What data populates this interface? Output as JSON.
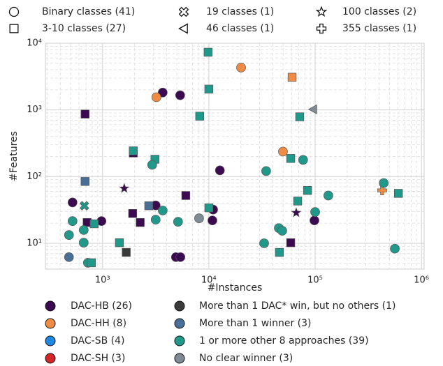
{
  "chart_data": {
    "type": "scatter",
    "xlabel": "#Instances",
    "ylabel": "#Features",
    "xscale": "log",
    "yscale": "log",
    "grid": true,
    "xlim": [
      290,
      1060000
    ],
    "ylim": [
      4.1,
      10000
    ],
    "xticks": [
      {
        "value": 1000,
        "label": "10³"
      },
      {
        "value": 10000,
        "label": "10⁴"
      },
      {
        "value": 100000,
        "label": "10⁵"
      },
      {
        "value": 1000000,
        "label": "10⁶"
      }
    ],
    "yticks": [
      {
        "value": 10,
        "label": "10¹"
      },
      {
        "value": 100,
        "label": "10²"
      },
      {
        "value": 1000,
        "label": "10³"
      },
      {
        "value": 10000,
        "label": "10⁴"
      }
    ],
    "marker_legend": [
      {
        "name": "Binary classes (41)",
        "marker": "circle"
      },
      {
        "name": "19 classes (1)",
        "marker": "cross"
      },
      {
        "name": "100 classes (2)",
        "marker": "star"
      },
      {
        "name": "3-10 classes (27)",
        "marker": "square"
      },
      {
        "name": "46 classes (1)",
        "marker": "triangle"
      },
      {
        "name": "355 classes (1)",
        "marker": "plus"
      }
    ],
    "series": [
      {
        "name": "DAC-HB (26)",
        "color": "#3b0a50",
        "x": [
          522,
          3680,
          5370,
          685,
          1945,
          12700,
          3160,
          6070,
          1920,
          2260,
          716,
          977,
          10970,
          10800,
          4900,
          5400,
          1600,
          66400,
          58900,
          98400
        ],
        "values": [
          41,
          1820,
          1660,
          866,
          226,
          124,
          37,
          52,
          28,
          20.5,
          20.5,
          21.5,
          32,
          22,
          6.2,
          6.2,
          66.5,
          28.7,
          10.2,
          22
        ],
        "markers": [
          "circle",
          "circle",
          "circle",
          "square",
          "square",
          "circle",
          "circle",
          "square",
          "square",
          "square",
          "square",
          "circle",
          "circle",
          "circle",
          "circle",
          "circle",
          "star",
          "star",
          "square",
          "circle"
        ]
      },
      {
        "name": "DAC-HH (8)",
        "color": "#f08b45",
        "x": [
          20100,
          60700,
          3210,
          49800,
          427000
        ],
        "values": [
          4310,
          3090,
          1550,
          237,
          62
        ],
        "markers": [
          "circle",
          "square",
          "circle",
          "circle",
          "plus"
        ]
      },
      {
        "name": "DAC-SB (4)",
        "color": "#1e88e5",
        "x": [],
        "values": [],
        "markers": []
      },
      {
        "name": "DAC-SH (3)",
        "color": "#d62728",
        "x": [],
        "values": [],
        "markers": []
      },
      {
        "name": "More than 1 DAC* win, but no others (1)",
        "color": "#3a3a3a",
        "x": [
          1670
        ],
        "values": [
          7.3
        ],
        "markers": [
          "square"
        ]
      },
      {
        "name": "More than 1 winner (3)",
        "color": "#4a6f97",
        "x": [
          685,
          2720,
          483
        ],
        "values": [
          84.5,
          36.5,
          6.2
        ],
        "markers": [
          "square",
          "square",
          "circle"
        ]
      },
      {
        "name": "1 or more other 8 approaches (39)",
        "color": "#21998a",
        "x": [
          9840,
          10000,
          8200,
          71600,
          1945,
          3110,
          2930,
          58900,
          77000,
          34600,
          442000,
          607000,
          84800,
          133000,
          68500,
          100000,
          10000,
          3680,
          522,
          674,
          665,
          834,
          483,
          665,
          728,
          785,
          1440,
          3160,
          5130,
          33100,
          45500,
          49000,
          46100,
          562000
        ],
        "values": [
          7330,
          2050,
          805,
          787,
          243,
          182,
          150,
          187,
          178,
          121,
          80,
          56,
          62,
          52,
          43,
          29.4,
          34,
          31,
          21.5,
          36.5,
          15.8,
          19.6,
          13.3,
          10.2,
          5.1,
          5.1,
          10.2,
          22.6,
          21,
          10,
          16.9,
          15.4,
          7.3,
          8.3
        ],
        "markers": [
          "square",
          "square",
          "square",
          "square",
          "square",
          "square",
          "circle",
          "square",
          "circle",
          "circle",
          "circle",
          "square",
          "square",
          "circle",
          "square",
          "circle",
          "square",
          "circle",
          "circle",
          "cross",
          "circle",
          "square",
          "circle",
          "circle",
          "circle",
          "square",
          "square",
          "circle",
          "circle",
          "circle",
          "circle",
          "circle",
          "square",
          "circle"
        ]
      },
      {
        "name": "No clear winner (3)",
        "color": "#7f8b95",
        "x": [
          95700,
          8090
        ],
        "values": [
          1020,
          23.7
        ],
        "markers": [
          "triangle",
          "circle"
        ]
      }
    ]
  }
}
